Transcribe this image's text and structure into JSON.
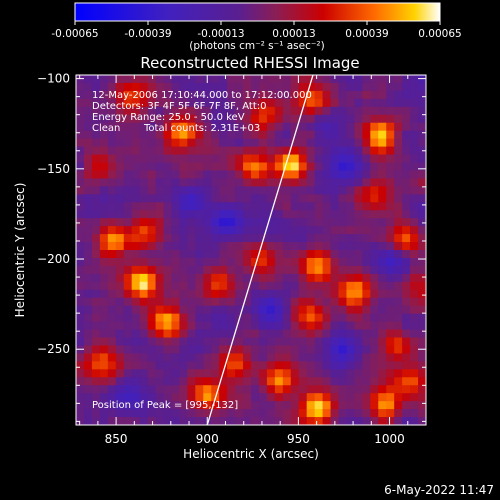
{
  "footer_timestamp": "6-May-2022 11:47",
  "colorbar": {
    "ticks": [
      "-0.00065",
      "-0.00039",
      "-0.00013",
      "0.00013",
      "0.00039",
      "0.00065"
    ],
    "unit_label": "(photons cm⁻² s⁻¹ asec⁻²)",
    "range": [
      -0.00065,
      0.00065
    ]
  },
  "chart_data": {
    "type": "heatmap",
    "title": "Reconstructed RHESSI Image",
    "xlabel": "Heliocentric X (arcsec)",
    "ylabel": "Heliocentric Y (arcsec)",
    "xlim": [
      828,
      1020
    ],
    "ylim": [
      -292,
      -98
    ],
    "xticks": [
      850,
      900,
      950,
      1000
    ],
    "yticks": [
      -100,
      -150,
      -200,
      -250
    ],
    "annotations": {
      "time": "12-May-2006 17:10:44.000 to 17:12:00.000",
      "detectors": "Detectors: 3F 4F 5F 6F 7F 8F, Att:0",
      "energy": "Energy Range: 25.0 - 50.0 keV",
      "method": "Clean",
      "counts": "Total counts: 2.31E+03",
      "peak": "Position of Peak = [995,-132]"
    },
    "limb_line": {
      "x": [
        900,
        958
      ],
      "y": [
        -292,
        -98
      ]
    },
    "intensity_range": [
      -0.00065,
      0.00065
    ],
    "hot_spots": [
      {
        "x": 995,
        "y": -132,
        "v": 0.00065
      },
      {
        "x": 946,
        "y": -148,
        "v": 0.0006
      },
      {
        "x": 925,
        "y": -148,
        "v": 0.00052
      },
      {
        "x": 958,
        "y": -112,
        "v": 0.00045
      },
      {
        "x": 857,
        "y": -110,
        "v": 0.00042
      },
      {
        "x": 886,
        "y": -130,
        "v": 0.00048
      },
      {
        "x": 864,
        "y": -213,
        "v": 0.00062
      },
      {
        "x": 878,
        "y": -235,
        "v": 0.00055
      },
      {
        "x": 848,
        "y": -190,
        "v": 0.00048
      },
      {
        "x": 900,
        "y": -275,
        "v": 0.00052
      },
      {
        "x": 915,
        "y": -258,
        "v": 0.00045
      },
      {
        "x": 842,
        "y": -258,
        "v": 0.0004
      },
      {
        "x": 960,
        "y": -205,
        "v": 0.00058
      },
      {
        "x": 980,
        "y": -218,
        "v": 0.00055
      },
      {
        "x": 1008,
        "y": -188,
        "v": 0.00052
      },
      {
        "x": 957,
        "y": -232,
        "v": 0.00044
      },
      {
        "x": 960,
        "y": -282,
        "v": 0.00062
      },
      {
        "x": 940,
        "y": -268,
        "v": 0.0005
      },
      {
        "x": 997,
        "y": -280,
        "v": 0.00045
      },
      {
        "x": 1012,
        "y": -268,
        "v": 0.00042
      },
      {
        "x": 1003,
        "y": -247,
        "v": 0.00038
      },
      {
        "x": 930,
        "y": -200,
        "v": 0.00032
      },
      {
        "x": 905,
        "y": -215,
        "v": 0.00035
      },
      {
        "x": 865,
        "y": -185,
        "v": 0.00032
      },
      {
        "x": 990,
        "y": -165,
        "v": 0.0003
      },
      {
        "x": 930,
        "y": -120,
        "v": 0.00035
      },
      {
        "x": 840,
        "y": -150,
        "v": 0.00028
      },
      {
        "x": 1015,
        "y": -215,
        "v": 0.00028
      }
    ],
    "cold_spots": [
      {
        "x": 910,
        "y": -180,
        "v": -0.00032
      },
      {
        "x": 975,
        "y": -150,
        "v": -0.00028
      },
      {
        "x": 1000,
        "y": -200,
        "v": -0.0003
      },
      {
        "x": 935,
        "y": -228,
        "v": -0.00035
      },
      {
        "x": 975,
        "y": -250,
        "v": -0.0003
      },
      {
        "x": 860,
        "y": -275,
        "v": -0.0003
      },
      {
        "x": 890,
        "y": -168,
        "v": -0.00025
      },
      {
        "x": 965,
        "y": -128,
        "v": -0.0002
      }
    ]
  }
}
